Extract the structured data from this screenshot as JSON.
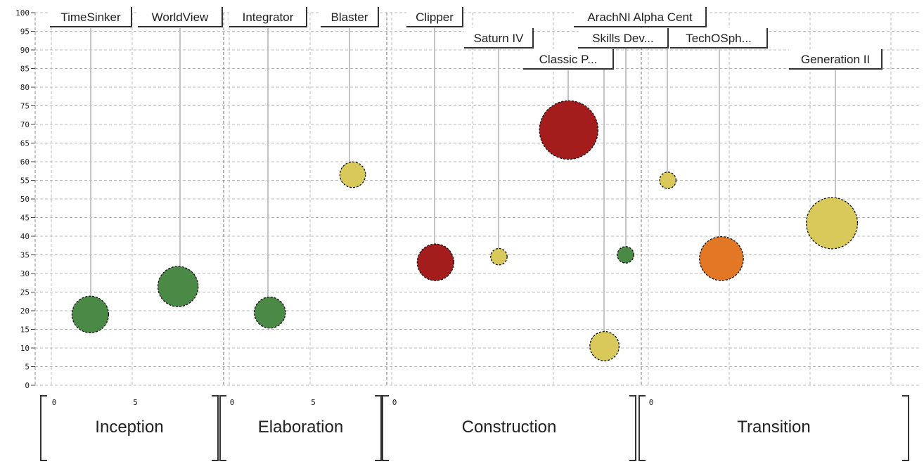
{
  "chart_data": {
    "type": "scatter",
    "title": "",
    "xlabel": "",
    "ylabel": "",
    "ylim": [
      0,
      100
    ],
    "y_ticks": [
      "0",
      "5",
      "10",
      "15",
      "20",
      "25",
      "30",
      "35",
      "40",
      "45",
      "50",
      "55",
      "60",
      "65",
      "70",
      "75",
      "80",
      "85",
      "90",
      "95",
      "100"
    ],
    "grid": true,
    "phases": [
      {
        "name": "Inception",
        "x_ticks": [
          "0",
          "5"
        ]
      },
      {
        "name": "Elaboration",
        "x_ticks": [
          "0",
          "5"
        ]
      },
      {
        "name": "Construction",
        "x_ticks": [
          "0"
        ]
      },
      {
        "name": "Transition",
        "x_ticks": [
          "0"
        ]
      }
    ],
    "colors": {
      "green": "#4a8a46",
      "yellow": "#d8c95a",
      "red": "#a41c1c",
      "orange": "#e27726"
    },
    "points": [
      {
        "label": "TimeSinker",
        "phase": "Inception",
        "x": 2.4,
        "y": 19,
        "size": 1.0,
        "color": "#4a8a46"
      },
      {
        "label": "WorldView",
        "phase": "Inception",
        "x": 7.8,
        "y": 26.5,
        "size": 1.1,
        "color": "#4a8a46"
      },
      {
        "label": "Integrator",
        "phase": "Elaboration",
        "x": 2.5,
        "y": 19.5,
        "size": 0.85,
        "color": "#4a8a46"
      },
      {
        "label": "Blaster",
        "phase": "Elaboration",
        "x": 7.6,
        "y": 56.5,
        "size": 0.7,
        "color": "#d8c95a"
      },
      {
        "label": "Clipper",
        "phase": "Construction",
        "x": 2.7,
        "y": 33,
        "size": 1.0,
        "color": "#a41c1c"
      },
      {
        "label": "Saturn IV",
        "phase": "Construction",
        "x": 6.6,
        "y": 34.5,
        "size": 0.45,
        "color": "#d8c95a"
      },
      {
        "label": "Classic P...",
        "phase": "Construction",
        "x": 10.9,
        "y": 68.5,
        "size": 1.6,
        "color": "#a41c1c"
      },
      {
        "label": "Skills Dev...",
        "phase": "Construction",
        "x": 13.1,
        "y": 10.5,
        "size": 0.8,
        "color": "#d8c95a"
      },
      {
        "label": "ArachNI Alpha Cent",
        "phase": "Construction",
        "x": 14.4,
        "y": 35,
        "size": 0.45,
        "color": "#4a8a46"
      },
      {
        "label": "TechOSph...",
        "phase": "Transition",
        "x": 1.2,
        "y": 55,
        "size": 0.45,
        "color": "#d8c95a"
      },
      {
        "label": "Generation II",
        "phase": "Transition",
        "x": 4.5,
        "y": 34,
        "size": 1.2,
        "color": "#e27726"
      },
      {
        "label": "Generation II",
        "phase": "Transition",
        "x": 11.3,
        "y": 43.5,
        "size": 1.4,
        "color": "#d8c95a"
      }
    ]
  }
}
